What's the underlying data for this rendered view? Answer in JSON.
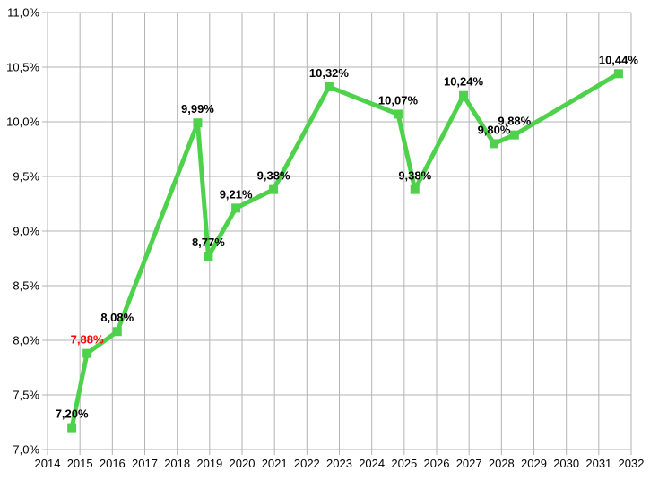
{
  "page": {
    "background": "#ffffff",
    "title": ""
  },
  "chart_data": {
    "type": "line",
    "title": "",
    "xlabel": "",
    "ylabel": "",
    "x_axis": {
      "min": 2014,
      "max": 2032,
      "step": 1,
      "tick_labels": [
        "2014",
        "2015",
        "2016",
        "2017",
        "2018",
        "2019",
        "2020",
        "2021",
        "2022",
        "2023",
        "2024",
        "2025",
        "2026",
        "2027",
        "2028",
        "2029",
        "2030",
        "2031",
        "2032"
      ]
    },
    "y_axis": {
      "min": 7.0,
      "max": 11.0,
      "step": 0.5,
      "tick_labels": [
        "7,0%",
        "7,5%",
        "8,0%",
        "8,5%",
        "9,0%",
        "9,5%",
        "10,0%",
        "10,5%",
        "11,0%"
      ]
    },
    "grid": {
      "show": true,
      "color": "#b3b3b3"
    },
    "legend": {
      "show": false
    },
    "colors": {
      "series_green": "#4fd24b",
      "label_black": "#000000",
      "label_red": "#ff0000",
      "axis_text": "#000000",
      "background": "#ffffff"
    },
    "series": [
      {
        "name": "percentage-series",
        "line_color": "#4fd24b",
        "marker": "square",
        "points": [
          {
            "x": 2014.75,
            "y": 7.2,
            "label": "7,20%",
            "label_color": "#000000"
          },
          {
            "x": 2015.22,
            "y": 7.88,
            "label": "7,88%",
            "label_color": "#ff0000"
          },
          {
            "x": 2016.15,
            "y": 8.08,
            "label": "8,08%",
            "label_color": "#000000"
          },
          {
            "x": 2018.63,
            "y": 9.99,
            "label": "9,99%",
            "label_color": "#000000"
          },
          {
            "x": 2018.96,
            "y": 8.77,
            "label": "8,77%",
            "label_color": "#000000"
          },
          {
            "x": 2019.81,
            "y": 9.21,
            "label": "9,21%",
            "label_color": "#000000"
          },
          {
            "x": 2020.97,
            "y": 9.38,
            "label": "9,38%",
            "label_color": "#000000"
          },
          {
            "x": 2022.68,
            "y": 10.32,
            "label": "10,32%",
            "label_color": "#000000"
          },
          {
            "x": 2024.81,
            "y": 10.07,
            "label": "10,07%",
            "label_color": "#000000"
          },
          {
            "x": 2025.33,
            "y": 9.38,
            "label": "9,38%",
            "label_color": "#000000"
          },
          {
            "x": 2026.83,
            "y": 10.24,
            "label": "10,24%",
            "label_color": "#000000"
          },
          {
            "x": 2027.77,
            "y": 9.8,
            "label": "9,80%",
            "label_color": "#000000"
          },
          {
            "x": 2028.4,
            "y": 9.88,
            "label": "9,88%",
            "label_color": "#000000"
          },
          {
            "x": 2031.61,
            "y": 10.44,
            "label": "10,44%",
            "label_color": "#000000"
          }
        ]
      }
    ]
  }
}
